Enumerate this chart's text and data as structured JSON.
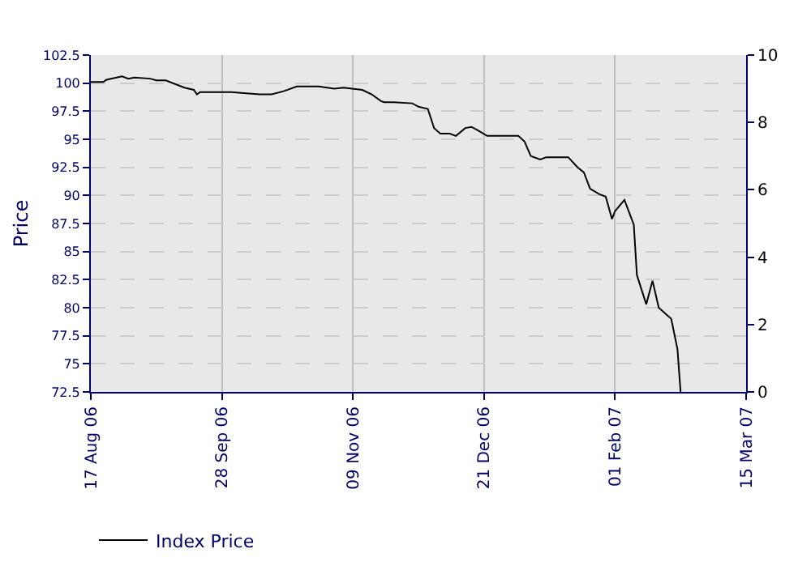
{
  "chart_data": {
    "type": "line",
    "ylabel": "Price",
    "x": [
      "2006-08-17",
      "2006-08-21",
      "2006-08-22",
      "2006-08-27",
      "2006-08-29",
      "2006-08-31",
      "2006-09-05",
      "2006-09-07",
      "2006-09-10",
      "2006-09-16",
      "2006-09-19",
      "2006-09-20",
      "2006-09-21",
      "2006-10-01",
      "2006-10-10",
      "2006-10-14",
      "2006-10-18",
      "2006-10-22",
      "2006-10-29",
      "2006-11-03",
      "2006-11-06",
      "2006-11-12",
      "2006-11-15",
      "2006-11-18",
      "2006-11-19",
      "2006-11-22",
      "2006-11-28",
      "2006-11-30",
      "2006-12-03",
      "2006-12-05",
      "2006-12-07",
      "2006-12-10",
      "2006-12-12",
      "2006-12-15",
      "2006-12-17",
      "2006-12-19",
      "2006-12-22",
      "2007-01-01",
      "2007-01-03",
      "2007-01-05",
      "2007-01-08",
      "2007-01-10",
      "2007-01-17",
      "2007-01-20",
      "2007-01-22",
      "2007-01-24",
      "2007-01-27",
      "2007-01-29",
      "2007-01-31",
      "2007-02-01",
      "2007-02-04",
      "2007-02-07",
      "2007-02-08",
      "2007-02-11",
      "2007-02-13",
      "2007-02-15",
      "2007-02-19",
      "2007-02-21",
      "2007-02-22"
    ],
    "series": [
      {
        "name": "Index Price",
        "color": "#000000",
        "values": [
          100.1,
          100.1,
          100.3,
          100.6,
          100.4,
          100.5,
          100.4,
          100.25,
          100.25,
          99.6,
          99.4,
          99.0,
          99.2,
          99.2,
          99.0,
          99.0,
          99.3,
          99.7,
          99.7,
          99.5,
          99.6,
          99.4,
          99.0,
          98.4,
          98.3,
          98.3,
          98.2,
          97.9,
          97.7,
          96.0,
          95.5,
          95.5,
          95.3,
          96.0,
          96.1,
          95.8,
          95.3,
          95.3,
          94.8,
          93.5,
          93.2,
          93.4,
          93.4,
          92.5,
          92.05,
          90.6,
          90.1,
          89.9,
          87.9,
          88.6,
          89.6,
          87.4,
          82.9,
          80.3,
          82.4,
          80.0,
          79.0,
          76.3,
          72.5
        ]
      }
    ],
    "xlim": [
      "2006-08-17",
      "2007-03-15"
    ],
    "xticks": [
      {
        "value": "2006-08-17",
        "label": "17 Aug 06"
      },
      {
        "value": "2006-09-28",
        "label": "28 Sep 06"
      },
      {
        "value": "2006-11-09",
        "label": "09 Nov 06"
      },
      {
        "value": "2006-12-21",
        "label": "21 Dec 06"
      },
      {
        "value": "2007-02-01",
        "label": "01 Feb 07"
      },
      {
        "value": "2007-03-15",
        "label": "15 Mar 07"
      }
    ],
    "ylim": [
      72.5,
      102.5
    ],
    "yticks": [
      72.5,
      75,
      77.5,
      80,
      82.5,
      85,
      87.5,
      90,
      92.5,
      95,
      97.5,
      100,
      102.5
    ],
    "y2lim": [
      0,
      10
    ],
    "y2ticks": [
      0,
      2,
      4,
      6,
      8,
      10
    ],
    "grid": true,
    "legend": "bottom left",
    "marker": "none",
    "line_style": "solid"
  }
}
